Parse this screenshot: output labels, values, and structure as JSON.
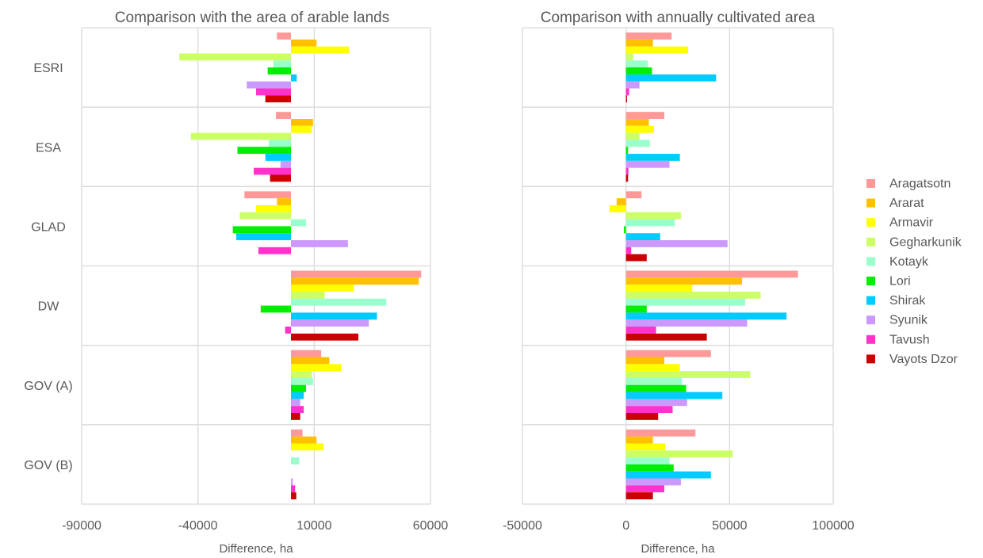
{
  "chart_data": [
    {
      "type": "bar",
      "orientation": "horizontal",
      "title": "Comparison with the area of arable lands",
      "xlabel": "Difference, ha",
      "xlim": [
        -90000,
        60000
      ],
      "xticks": [
        -90000,
        -40000,
        10000,
        60000
      ],
      "xtick_labels": [
        "-90000",
        "-40000",
        "10000",
        "60000"
      ],
      "grid": true,
      "categories": [
        "ESRI",
        "ESA",
        "GLAD",
        "DW",
        "GOV (A)",
        "GOV (B)"
      ],
      "series": [
        {
          "name": "Aragatsotn",
          "values": [
            -6000,
            -6500,
            -20000,
            56000,
            13000,
            5000
          ]
        },
        {
          "name": "Ararat",
          "values": [
            11000,
            9500,
            -6000,
            55000,
            16500,
            11000
          ]
        },
        {
          "name": "Armavir",
          "values": [
            25000,
            9000,
            -15000,
            27000,
            21500,
            14000
          ]
        },
        {
          "name": "Gegharkunik",
          "values": [
            -48000,
            -43000,
            -22000,
            14500,
            9000,
            0
          ]
        },
        {
          "name": "Kotayk",
          "values": [
            -7500,
            -9500,
            6500,
            41000,
            9500,
            3500
          ]
        },
        {
          "name": "Lori",
          "values": [
            -10000,
            -23000,
            -25000,
            -13000,
            6500,
            0
          ]
        },
        {
          "name": "Shirak",
          "values": [
            2500,
            -11000,
            -23500,
            37000,
            5500,
            0
          ]
        },
        {
          "name": "Syunik",
          "values": [
            -19000,
            -4500,
            24500,
            33500,
            4000,
            800
          ]
        },
        {
          "name": "Tavush",
          "values": [
            -15000,
            -16000,
            -14000,
            -2500,
            5500,
            1800
          ]
        },
        {
          "name": "Vayots Dzor",
          "values": [
            -11000,
            -9000,
            0,
            29000,
            4000,
            2300
          ]
        }
      ]
    },
    {
      "type": "bar",
      "orientation": "horizontal",
      "title": "Comparison with annually cultivated area",
      "xlabel": "Difference, ha",
      "xlim": [
        -50000,
        100000
      ],
      "xticks": [
        -50000,
        0,
        50000,
        100000
      ],
      "xtick_labels": [
        "-50000",
        "0",
        "50000",
        "100000"
      ],
      "grid": true,
      "categories": [
        "ESRI",
        "ESA",
        "GLAD",
        "DW",
        "GOV (A)",
        "GOV (B)"
      ],
      "series": [
        {
          "name": "Aragatsotn",
          "values": [
            22000,
            18500,
            7500,
            83000,
            41000,
            33500
          ]
        },
        {
          "name": "Ararat",
          "values": [
            13000,
            11000,
            -4500,
            56000,
            18500,
            13000
          ]
        },
        {
          "name": "Armavir",
          "values": [
            30000,
            13500,
            -8000,
            32000,
            26000,
            19000
          ]
        },
        {
          "name": "Gegharkunik",
          "values": [
            3500,
            6500,
            26500,
            65000,
            60000,
            51500
          ]
        },
        {
          "name": "Kotayk",
          "values": [
            10500,
            11500,
            23500,
            57500,
            27000,
            21000
          ]
        },
        {
          "name": "Lori",
          "values": [
            12500,
            1000,
            -1000,
            10000,
            29000,
            23000
          ]
        },
        {
          "name": "Shirak",
          "values": [
            43500,
            26000,
            16500,
            77500,
            46500,
            41000
          ]
        },
        {
          "name": "Syunik",
          "values": [
            6500,
            21000,
            49000,
            58500,
            29500,
            26500
          ]
        },
        {
          "name": "Tavush",
          "values": [
            1500,
            1200,
            2500,
            14500,
            22500,
            18500
          ]
        },
        {
          "name": "Vayots Dzor",
          "values": [
            500,
            1000,
            10000,
            39000,
            15500,
            13000
          ]
        }
      ]
    }
  ],
  "legend": {
    "position": "right",
    "items": [
      {
        "name": "Aragatsotn",
        "color": "#ff9999"
      },
      {
        "name": "Ararat",
        "color": "#ffc000"
      },
      {
        "name": "Armavir",
        "color": "#ffff00"
      },
      {
        "name": "Gegharkunik",
        "color": "#ccff66"
      },
      {
        "name": "Kotayk",
        "color": "#99ffcc"
      },
      {
        "name": "Lori",
        "color": "#00ee00"
      },
      {
        "name": "Shirak",
        "color": "#00ccff"
      },
      {
        "name": "Syunik",
        "color": "#cc99ff"
      },
      {
        "name": "Tavush",
        "color": "#ff33cc"
      },
      {
        "name": "Vayots Dzor",
        "color": "#cc0000"
      }
    ]
  },
  "colors": {
    "gridline": "#d9d9d9",
    "text": "#595959"
  }
}
